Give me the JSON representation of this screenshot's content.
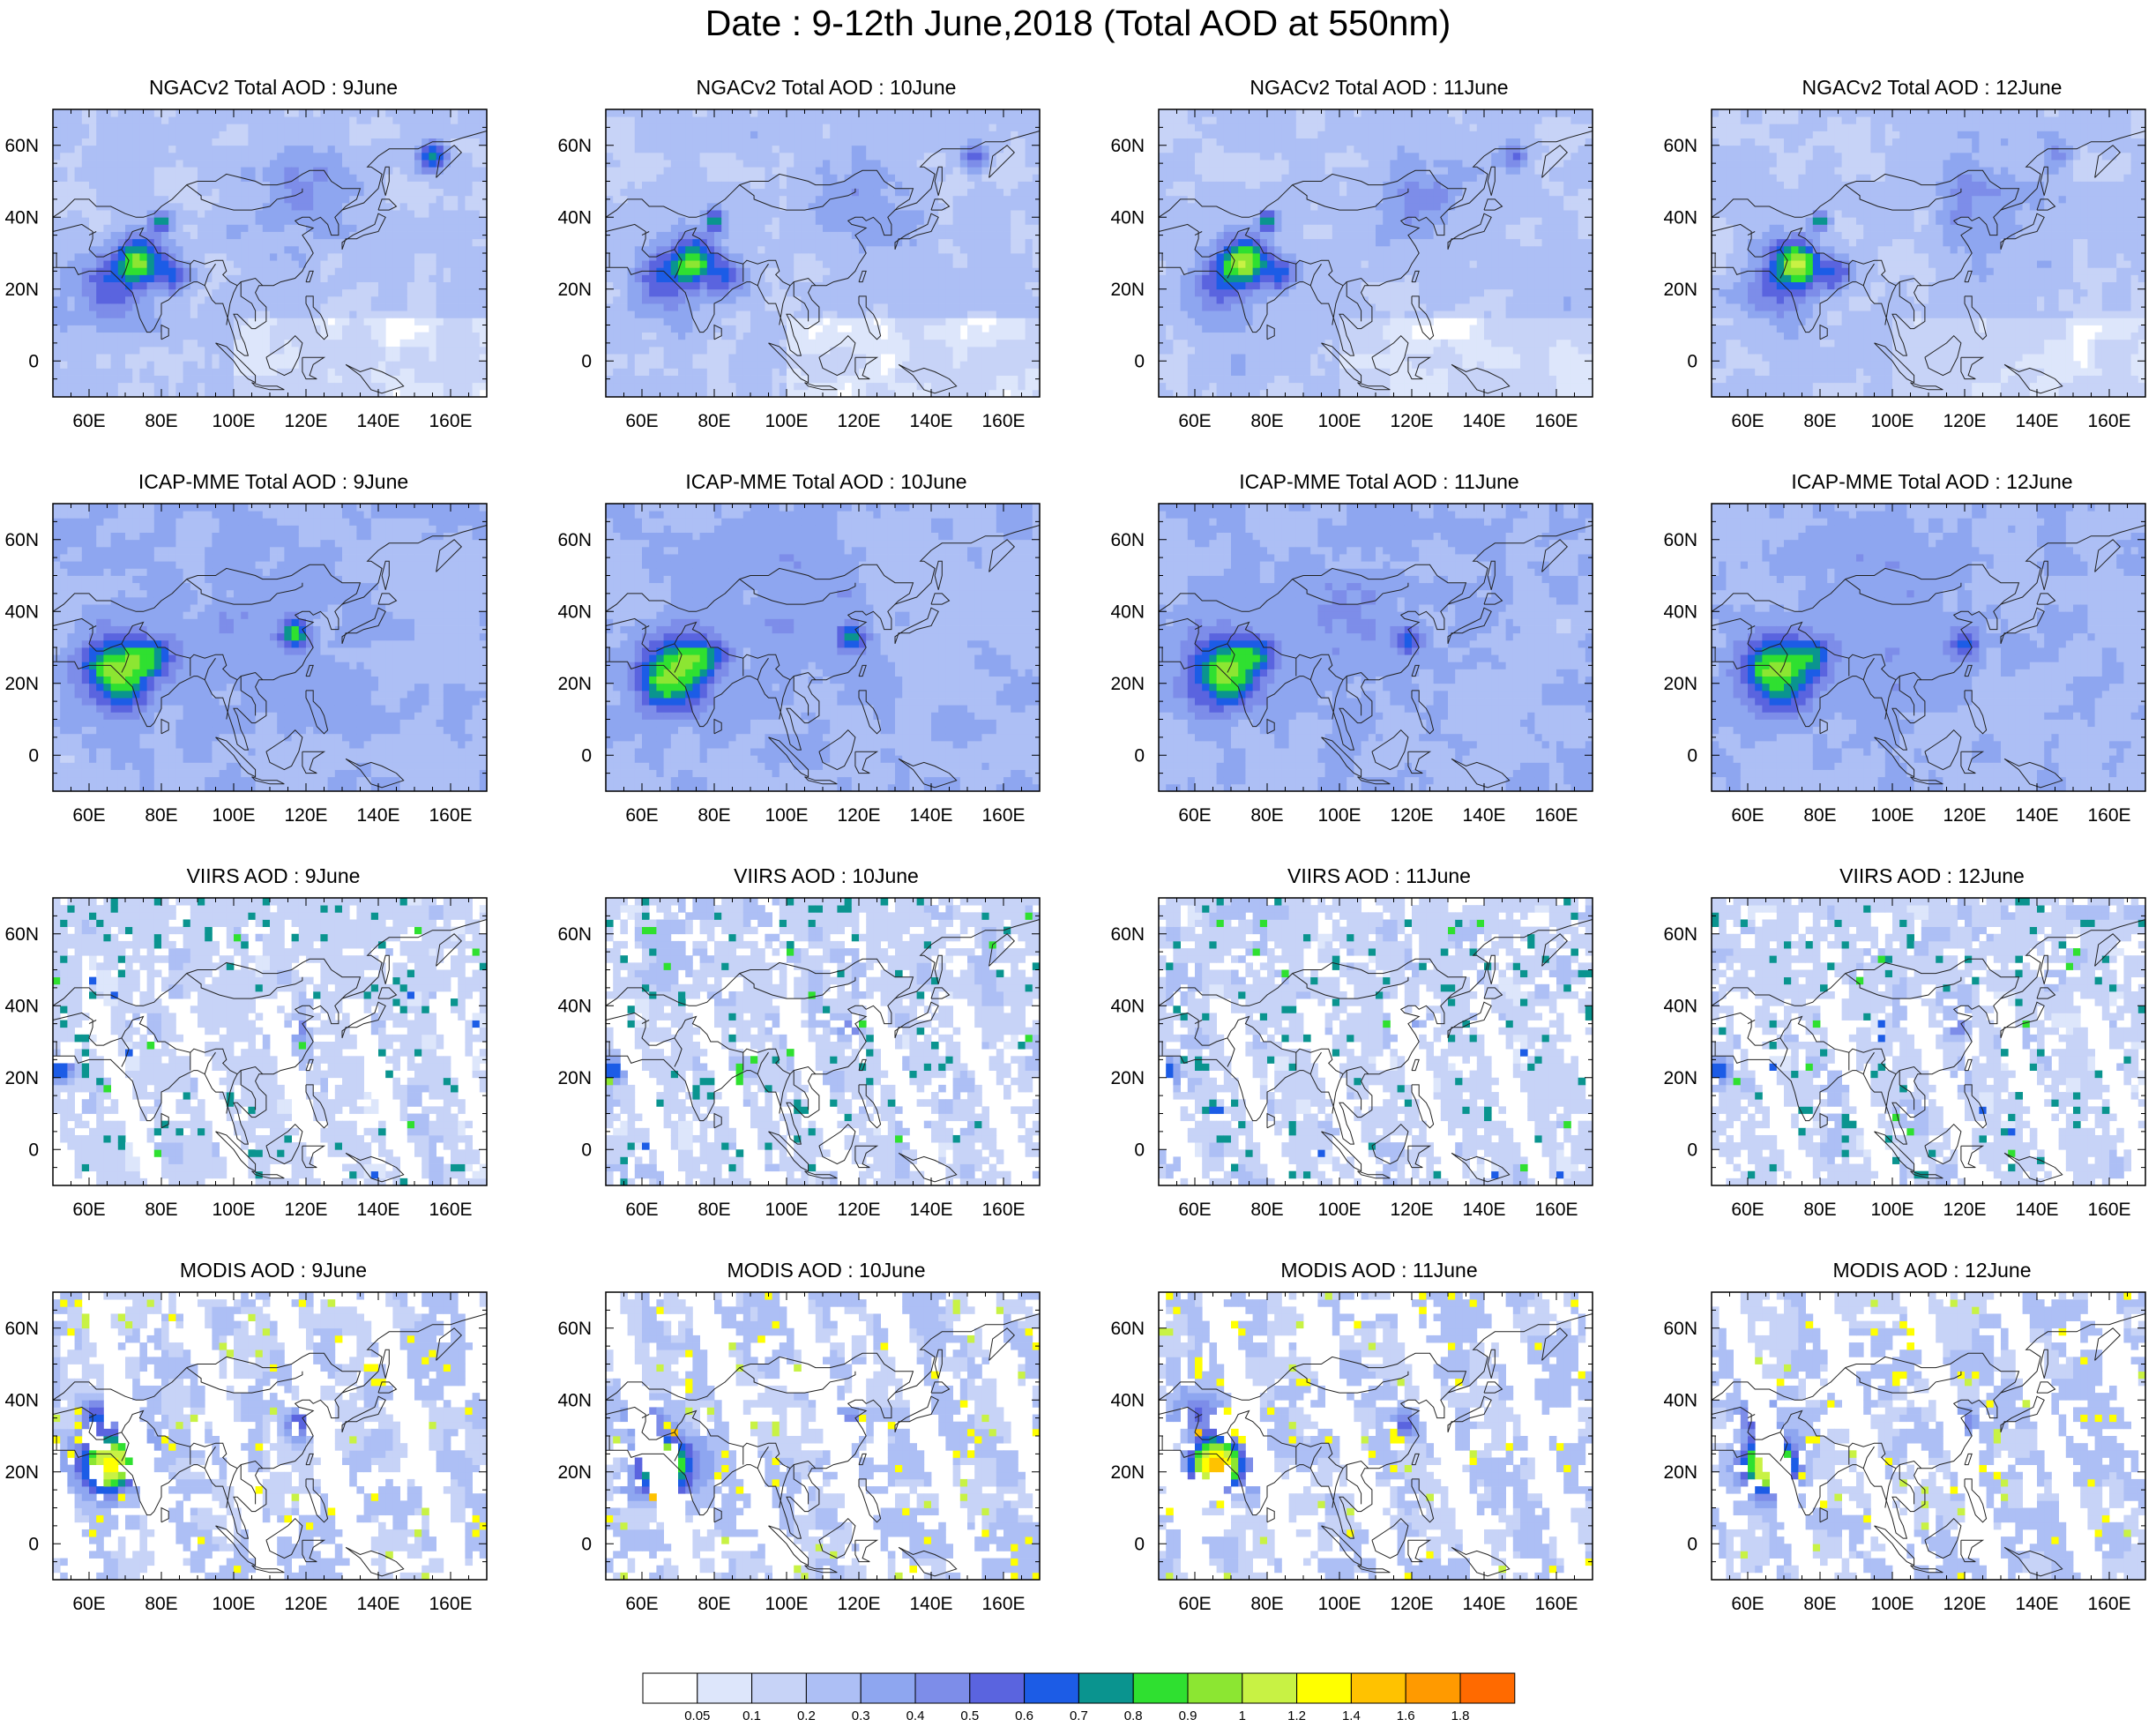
{
  "figure_title": "Date : 9-12th June,2018 (Total AOD at 550nm)",
  "rows": [
    {
      "product": "NGACv2 Total AOD",
      "panels": [
        "NGACv2 Total AOD : 9June",
        "NGACv2 Total AOD : 10June",
        "NGACv2 Total AOD : 11June",
        "NGACv2 Total AOD : 12June"
      ]
    },
    {
      "product": "ICAP-MME Total AOD",
      "panels": [
        "ICAP-MME Total AOD : 9June",
        "ICAP-MME Total AOD : 10June",
        "ICAP-MME Total AOD : 11June",
        "ICAP-MME Total AOD : 12June"
      ]
    },
    {
      "product": "VIIRS AOD",
      "panels": [
        "VIIRS AOD : 9June",
        "VIIRS AOD : 10June",
        "VIIRS AOD : 11June",
        "VIIRS AOD : 12June"
      ]
    },
    {
      "product": "MODIS AOD",
      "panels": [
        "MODIS AOD : 9June",
        "MODIS AOD : 10June",
        "MODIS AOD : 11June",
        "MODIS AOD : 12June"
      ]
    }
  ],
  "map_extent": {
    "lon": [
      50,
      170
    ],
    "lat": [
      -10,
      70
    ]
  },
  "lon_ticks": [
    "60E",
    "80E",
    "100E",
    "120E",
    "140E",
    "160E"
  ],
  "lat_ticks": [
    "60N",
    "40N",
    "20N",
    "0"
  ],
  "colorbar": {
    "levels": [
      "0.05",
      "0.1",
      "0.2",
      "0.3",
      "0.4",
      "0.5",
      "0.6",
      "0.7",
      "0.8",
      "0.9",
      "1",
      "1.2",
      "1.4",
      "1.6",
      "1.8"
    ],
    "colors": [
      "#ffffff",
      "#dde6fb",
      "#c7d3f7",
      "#adbff5",
      "#8ea6f0",
      "#7d8de9",
      "#5a64df",
      "#1c5ce6",
      "#0a948f",
      "#2fe030",
      "#8ce632",
      "#c8f244",
      "#ffff00",
      "#ffc200",
      "#ff9a00",
      "#ff6a00",
      "#ff2a14"
    ]
  }
}
